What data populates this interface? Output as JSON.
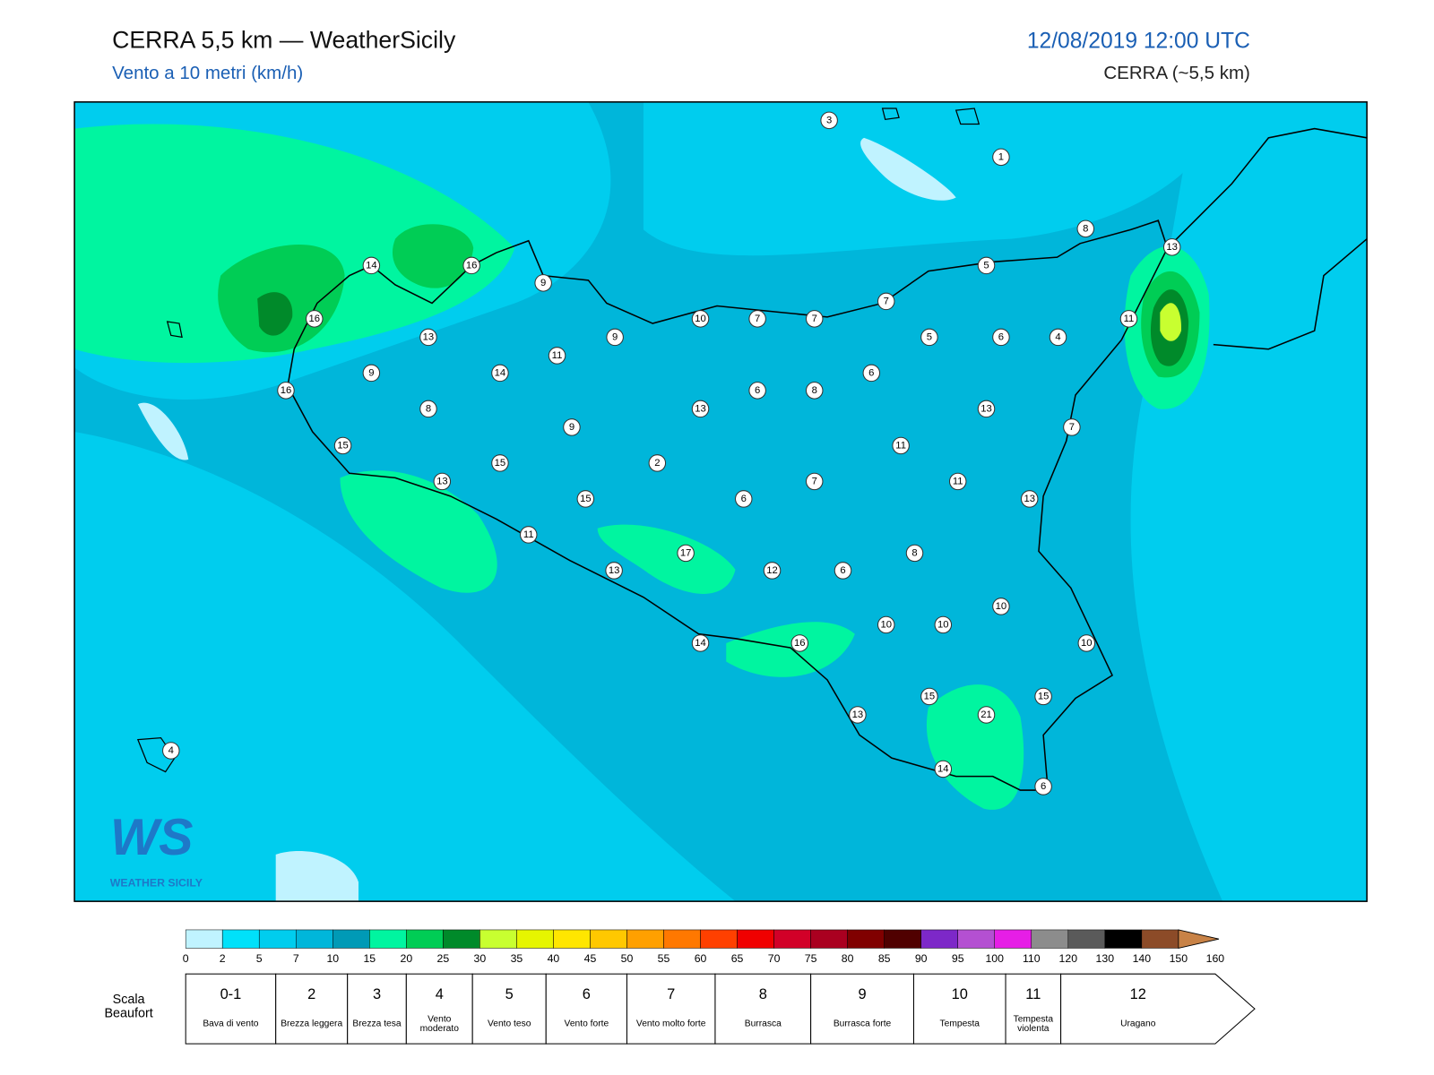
{
  "header": {
    "title": "CERRA 5,5 km — WeatherSicily",
    "subtitle": "Vento a 10 metri (km/h)",
    "datetime": "12/08/2019 12:00 UTC",
    "model": "CERRA (~5,5 km)"
  },
  "stations": [
    3,
    1,
    8,
    13,
    14,
    16,
    9,
    5,
    7,
    10,
    7,
    7,
    11,
    16,
    13,
    9,
    5,
    6,
    4,
    11,
    9,
    14,
    6,
    6,
    8,
    16,
    8,
    13,
    13,
    9,
    7,
    15,
    11,
    2,
    15,
    7,
    11,
    13,
    15,
    6,
    13,
    11,
    17,
    8,
    13,
    12,
    6,
    10,
    10,
    10,
    14,
    16,
    10,
    15,
    21,
    15,
    13,
    4,
    14,
    6
  ],
  "logo": {
    "mark": "WS",
    "name": "WEATHER SICILY"
  },
  "colorbar": {
    "ticks": [
      0,
      2,
      5,
      7,
      10,
      15,
      20,
      25,
      30,
      35,
      40,
      45,
      50,
      55,
      60,
      65,
      70,
      75,
      80,
      85,
      90,
      95,
      100,
      110,
      120,
      130,
      140,
      150,
      160
    ],
    "colors": [
      "#c0f3ff",
      "#00e1fa",
      "#00cdee",
      "#00b6da",
      "#009ab6",
      "#00f5a0",
      "#00cd55",
      "#008a2a",
      "#c8ff30",
      "#e6f500",
      "#ffe600",
      "#ffc800",
      "#ffa000",
      "#ff7800",
      "#ff4000",
      "#f00000",
      "#d20028",
      "#aa0020",
      "#800000",
      "#500000",
      "#7d28c8",
      "#b450d2",
      "#e61ee6",
      "#8c8c8c",
      "#5a5a5a",
      "#000000",
      "#8c4b28",
      "#c88246"
    ]
  },
  "beaufort": {
    "label": "Scala Beaufort",
    "levels": [
      {
        "force": "0-1",
        "name": "Bava di vento"
      },
      {
        "force": "2",
        "name": "Brezza leggera"
      },
      {
        "force": "3",
        "name": "Brezza tesa"
      },
      {
        "force": "4",
        "name": "Vento moderato"
      },
      {
        "force": "5",
        "name": "Vento teso"
      },
      {
        "force": "6",
        "name": "Vento forte"
      },
      {
        "force": "7",
        "name": "Vento molto forte"
      },
      {
        "force": "8",
        "name": "Burrasca"
      },
      {
        "force": "9",
        "name": "Burrasca forte"
      },
      {
        "force": "10",
        "name": "Tempesta"
      },
      {
        "force": "11",
        "name": "Tempesta violenta"
      },
      {
        "force": "12",
        "name": "Uragano"
      }
    ]
  }
}
